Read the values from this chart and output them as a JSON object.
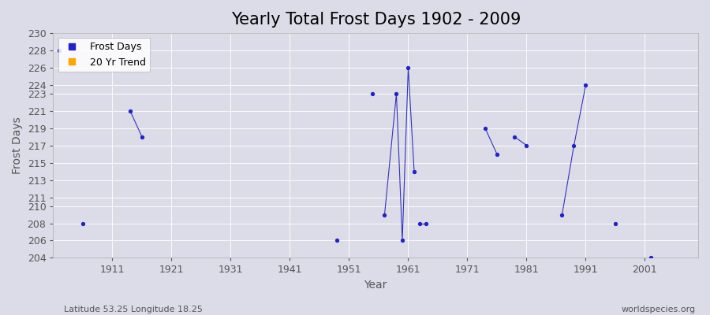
{
  "title": "Yearly Total Frost Days 1902 - 2009",
  "xlabel": "Year",
  "ylabel": "Frost Days",
  "subtitle": "Latitude 53.25 Longitude 18.25",
  "watermark": "worldspecies.org",
  "ylim": [
    204,
    230
  ],
  "xlim": [
    1901,
    2010
  ],
  "xticks": [
    1911,
    1921,
    1931,
    1941,
    1951,
    1961,
    1971,
    1981,
    1991,
    2001
  ],
  "ytick_positions": [
    204,
    206,
    208,
    210,
    211,
    213,
    215,
    217,
    219,
    221,
    223,
    224,
    226,
    228,
    230
  ],
  "background_color": "#dcdce8",
  "plot_bg_color": "#dcdce8",
  "line_color": "#3333bb",
  "point_color": "#2222cc",
  "isolated_points": [
    [
      1902,
      228
    ],
    [
      1906,
      208
    ],
    [
      1949,
      206
    ],
    [
      1955,
      223
    ],
    [
      1996,
      208
    ],
    [
      2002,
      204
    ]
  ],
  "segments": [
    [
      [
        1914,
        221
      ],
      [
        1916,
        218
      ]
    ],
    [
      [
        1957,
        209
      ],
      [
        1959,
        223
      ],
      [
        1960,
        206
      ],
      [
        1961,
        226
      ],
      [
        1962,
        214
      ]
    ],
    [
      [
        1963,
        208
      ],
      [
        1964,
        208
      ]
    ],
    [
      [
        1974,
        219
      ],
      [
        1976,
        216
      ]
    ],
    [
      [
        1979,
        218
      ],
      [
        1981,
        217
      ]
    ],
    [
      [
        1987,
        209
      ],
      [
        1989,
        217
      ],
      [
        1991,
        224
      ]
    ]
  ],
  "title_fontsize": 15,
  "axis_label_fontsize": 10,
  "tick_fontsize": 9,
  "legend_fontsize": 9
}
